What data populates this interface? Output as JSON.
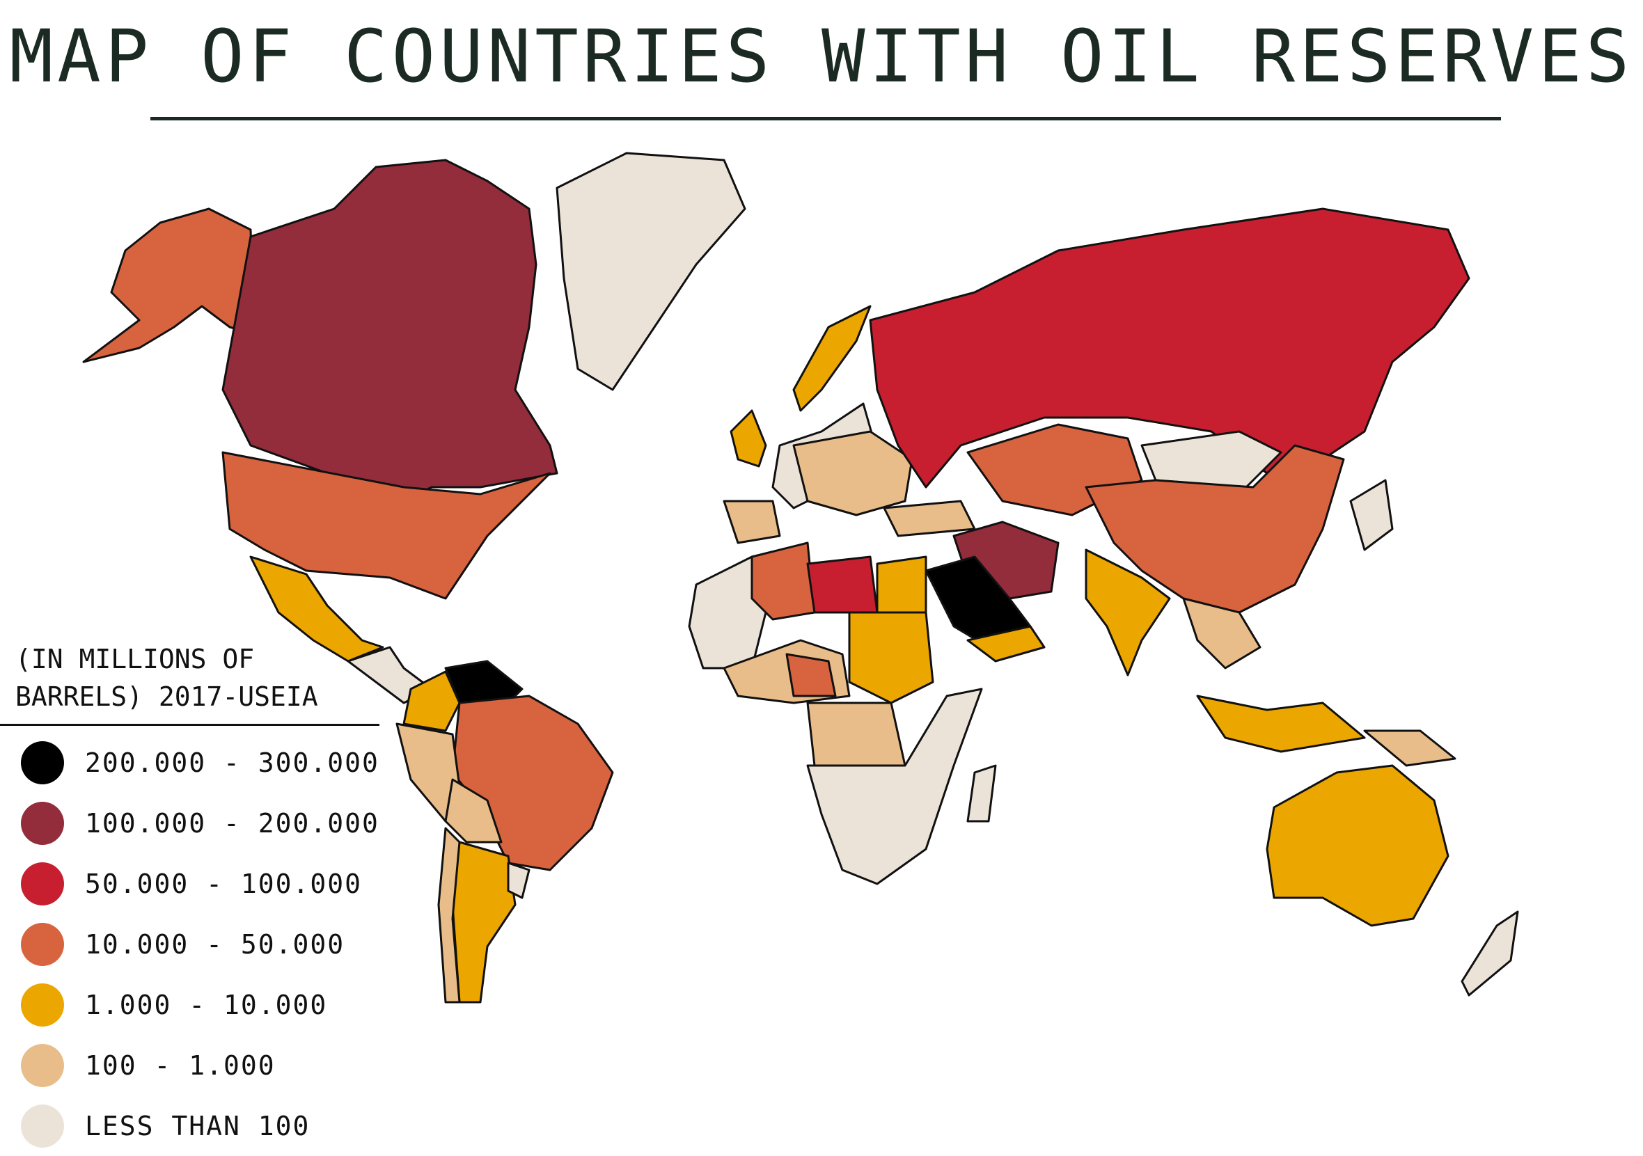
{
  "title": "MAP  OF COUNTRIES WITH OIL RESERVES",
  "legend": {
    "caption_line1": "(IN MILLIONS OF",
    "caption_line2": "BARRELS) 2017-USEIA",
    "items": [
      {
        "label": "200.000 - 300.000",
        "color": "#000000"
      },
      {
        "label": "100.000 - 200.000",
        "color": "#932c3b"
      },
      {
        "label": "50.000 - 100.000",
        "color": "#c71f30"
      },
      {
        "label": "10.000 - 50.000",
        "color": "#d8633f"
      },
      {
        "label": "1.000 - 10.000",
        "color": "#eca600"
      },
      {
        "label": "100 - 1.000",
        "color": "#e9bd8a"
      },
      {
        "label": "LESS THAN 100",
        "color": "#ece3d8"
      }
    ]
  },
  "regions": [
    {
      "name": "alaska",
      "tier": 3
    },
    {
      "name": "canada",
      "tier": 1
    },
    {
      "name": "greenland",
      "tier": 6
    },
    {
      "name": "usa",
      "tier": 3
    },
    {
      "name": "mexico",
      "tier": 4
    },
    {
      "name": "central-america",
      "tier": 6
    },
    {
      "name": "venezuela",
      "tier": 0
    },
    {
      "name": "colombia",
      "tier": 4
    },
    {
      "name": "brazil",
      "tier": 3
    },
    {
      "name": "peru",
      "tier": 5
    },
    {
      "name": "bolivia",
      "tier": 5
    },
    {
      "name": "argentina",
      "tier": 4
    },
    {
      "name": "chile",
      "tier": 5
    },
    {
      "name": "uruguay",
      "tier": 6
    },
    {
      "name": "uk",
      "tier": 4
    },
    {
      "name": "norway",
      "tier": 4
    },
    {
      "name": "western-europe",
      "tier": 6
    },
    {
      "name": "central-europe",
      "tier": 5
    },
    {
      "name": "iberia",
      "tier": 5
    },
    {
      "name": "russia",
      "tier": 2
    },
    {
      "name": "kazakhstan",
      "tier": 3
    },
    {
      "name": "mongolia",
      "tier": 6
    },
    {
      "name": "china",
      "tier": 3
    },
    {
      "name": "turkey",
      "tier": 5
    },
    {
      "name": "iran-iraq",
      "tier": 1
    },
    {
      "name": "saudi-arabia",
      "tier": 0
    },
    {
      "name": "yemen-oman",
      "tier": 4
    },
    {
      "name": "india",
      "tier": 4
    },
    {
      "name": "southeast-asia",
      "tier": 5
    },
    {
      "name": "indonesia",
      "tier": 4
    },
    {
      "name": "papua",
      "tier": 5
    },
    {
      "name": "australia",
      "tier": 4
    },
    {
      "name": "new-zealand",
      "tier": 6
    },
    {
      "name": "japan",
      "tier": 6
    },
    {
      "name": "algeria",
      "tier": 3
    },
    {
      "name": "libya",
      "tier": 2
    },
    {
      "name": "egypt",
      "tier": 4
    },
    {
      "name": "sudan",
      "tier": 4
    },
    {
      "name": "west-africa",
      "tier": 5
    },
    {
      "name": "nigeria",
      "tier": 3
    },
    {
      "name": "angola-congo",
      "tier": 5
    },
    {
      "name": "north-west-africa",
      "tier": 6
    },
    {
      "name": "southern-africa",
      "tier": 6
    },
    {
      "name": "madagascar",
      "tier": 6
    }
  ]
}
